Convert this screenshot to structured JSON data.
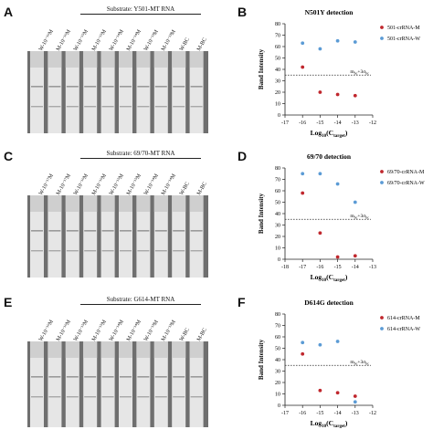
{
  "panels": [
    {
      "letter": "A",
      "substrate": "Substrate: Y501-MT RNA",
      "lanes": [
        "W-10⁻¹⁶M",
        "M-10⁻¹⁶M",
        "W-10⁻¹⁵M",
        "M-10⁻¹⁵M",
        "W-10⁻¹⁴M",
        "M-10⁻¹⁴M",
        "W-10⁻¹³M",
        "M-10⁻¹³M",
        "W-BC",
        "M-BC"
      ]
    },
    {
      "letter": "C",
      "substrate": "Substrate: 69/70-MT RNA",
      "lanes": [
        "W-10⁻¹⁷M",
        "M-10⁻¹⁷M",
        "W-10⁻¹⁶M",
        "M-10⁻¹⁶M",
        "W-10⁻¹⁵M",
        "M-10⁻¹⁵M",
        "W-10⁻¹⁴M",
        "M-10⁻¹⁴M",
        "W-BC",
        "M-BC"
      ]
    },
    {
      "letter": "E",
      "substrate": "Substrate: G614-MT RNA",
      "lanes": [
        "W-10⁻¹⁶M",
        "M-10⁻¹⁶M",
        "W-10⁻¹⁵M",
        "M-10⁻¹⁵M",
        "W-10⁻¹⁴M",
        "M-10⁻¹⁴M",
        "W-10⁻¹³M",
        "M-10⁻¹³M",
        "W-BC",
        "M-BC"
      ]
    }
  ],
  "chart_letters": [
    "B",
    "D",
    "F"
  ],
  "colors": {
    "mutant": "#c0272d",
    "wild": "#5b9bd5",
    "axis": "#222222"
  },
  "chart_data": [
    {
      "type": "scatter",
      "title": "N501Y detection",
      "xlabel": "Log10(Ctarget)",
      "ylabel": "Band Intensity",
      "xlim": [
        -17,
        -12
      ],
      "ylim": [
        0,
        80
      ],
      "xticks": [
        -17,
        -16,
        -15,
        -14,
        -13,
        -12
      ],
      "yticks": [
        0,
        10,
        20,
        30,
        40,
        50,
        60,
        70,
        80
      ],
      "threshold": {
        "value": 35,
        "label": "mbc+3σbc"
      },
      "legend_position": "top-right",
      "series": [
        {
          "name": "501-crRNA-M",
          "color": "#c0272d",
          "x": [
            -16,
            -15,
            -14,
            -13
          ],
          "y": [
            42,
            20,
            18,
            17
          ]
        },
        {
          "name": "501-crRNA-W",
          "color": "#5b9bd5",
          "x": [
            -16,
            -15,
            -14,
            -13
          ],
          "y": [
            63,
            58,
            65,
            64
          ]
        }
      ]
    },
    {
      "type": "scatter",
      "title": "69/70 detection",
      "xlabel": "Log10(Ctarget)",
      "ylabel": "Band Intensity",
      "xlim": [
        -18,
        -13
      ],
      "ylim": [
        0,
        80
      ],
      "xticks": [
        -18,
        -17,
        -16,
        -15,
        -14,
        -13
      ],
      "yticks": [
        0,
        10,
        20,
        30,
        40,
        50,
        60,
        70,
        80
      ],
      "threshold": {
        "value": 35,
        "label": "mbc+3σbc"
      },
      "legend_position": "top-right",
      "series": [
        {
          "name": "69/70-crRNA-M",
          "color": "#c0272d",
          "x": [
            -17,
            -16,
            -15,
            -14
          ],
          "y": [
            58,
            23,
            2,
            3
          ]
        },
        {
          "name": "69/70-crRNA-W",
          "color": "#5b9bd5",
          "x": [
            -17,
            -16,
            -15,
            -14
          ],
          "y": [
            75,
            75,
            66,
            50
          ]
        }
      ]
    },
    {
      "type": "scatter",
      "title": "D614G detection",
      "xlabel": "Log10(Ctarget)",
      "ylabel": "Band Intensity",
      "xlim": [
        -17,
        -12
      ],
      "ylim": [
        0,
        80
      ],
      "xticks": [
        -17,
        -16,
        -15,
        -14,
        -13,
        -12
      ],
      "yticks": [
        0,
        10,
        20,
        30,
        40,
        50,
        60,
        70,
        80
      ],
      "threshold": {
        "value": 35,
        "label": "mbc+3σbc"
      },
      "legend_position": "top-right",
      "series": [
        {
          "name": "614-crRNA-M",
          "color": "#c0272d",
          "x": [
            -16,
            -15,
            -14,
            -13
          ],
          "y": [
            45,
            13,
            11,
            8
          ]
        },
        {
          "name": "614-crRNA-W",
          "color": "#5b9bd5",
          "x": [
            -16,
            -15,
            -14,
            -13
          ],
          "y": [
            55,
            53,
            56,
            3
          ]
        }
      ]
    }
  ]
}
